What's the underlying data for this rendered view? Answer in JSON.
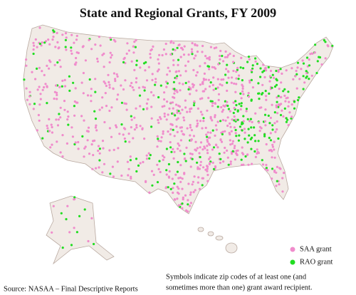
{
  "title": "State and Regional Grants, FY 2009",
  "legend": [
    {
      "name": "SAA grant",
      "color": "#f08ccc"
    },
    {
      "name": "RAO grant",
      "color": "#22dd22"
    }
  ],
  "note": [
    "Symbols indicate zip codes of at least one (and",
    "sometimes more than one) grant award recipient."
  ],
  "source": "Source: NASAA – Final Descriptive Reports"
}
